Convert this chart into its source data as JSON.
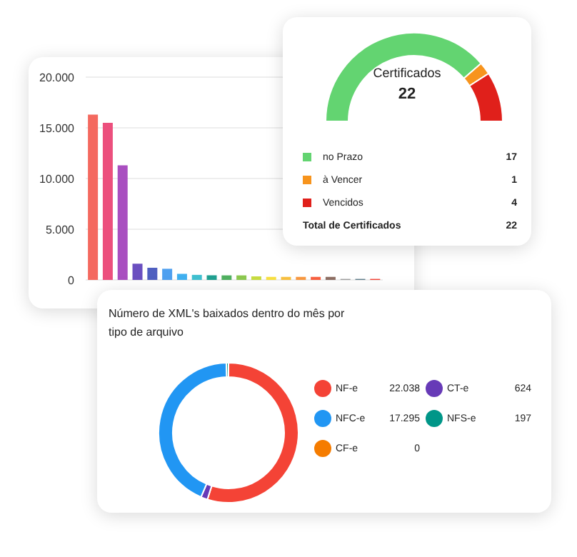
{
  "chart_data": [
    {
      "type": "donut",
      "title": "Certificados",
      "categories": [
        "no Prazo",
        "à Vencer",
        "Vencidos"
      ],
      "values": [
        17,
        1,
        4
      ],
      "colors": [
        "#63d471",
        "#f7941d",
        "#e0201b"
      ],
      "data_labels": true,
      "legend": "bottom",
      "annotations": [
        "22",
        "Total de Certificados",
        "22"
      ]
    },
    {
      "type": "bar",
      "categories": [
        null,
        null,
        null,
        null,
        null,
        null,
        null,
        null,
        null,
        null,
        null,
        null,
        null,
        null,
        null,
        null,
        null,
        null,
        null,
        null
      ],
      "values": [
        16300,
        15500,
        11300,
        1600,
        1200,
        1100,
        600,
        500,
        450,
        450,
        450,
        350,
        300,
        300,
        300,
        300,
        300,
        100,
        100,
        100
      ],
      "colors": [
        "#f4695f",
        "#ec4f7d",
        "#a94fc0",
        "#6a4fc0",
        "#4f5fc0",
        "#4fa0f0",
        "#40b0f0",
        "#40c0d0",
        "#20a090",
        "#50b060",
        "#8cc850",
        "#c8dc40",
        "#f8e040",
        "#f8c040",
        "#f89840",
        "#f86040",
        "#8d6e63",
        "#9e9e9e",
        "#607d8b",
        "#f44336"
      ],
      "ylim": [
        0,
        20000
      ],
      "yticks": [
        0,
        {
          "value": 5000,
          "label": "5.000"
        },
        {
          "value": 10000,
          "label": "10.000"
        },
        {
          "value": 15000,
          "label": "15.000"
        },
        {
          "value": 20000,
          "label": "20.000"
        }
      ],
      "grid": "y"
    },
    {
      "type": "donut",
      "title": "Número de XML's baixados dentro do mês por tipo de arquivo",
      "categories": [
        "NF-e",
        "CT-e",
        "NFC-e",
        "NFS-e",
        "CF-e"
      ],
      "values": [
        22038,
        624,
        17295,
        197,
        0
      ],
      "value_labels": [
        "22.038",
        "624",
        "17.295",
        "197",
        "0"
      ],
      "colors": [
        "#f44336",
        "#673ab7",
        "#2196f3",
        "#009688",
        "#f57c00"
      ],
      "legend": "right"
    }
  ]
}
